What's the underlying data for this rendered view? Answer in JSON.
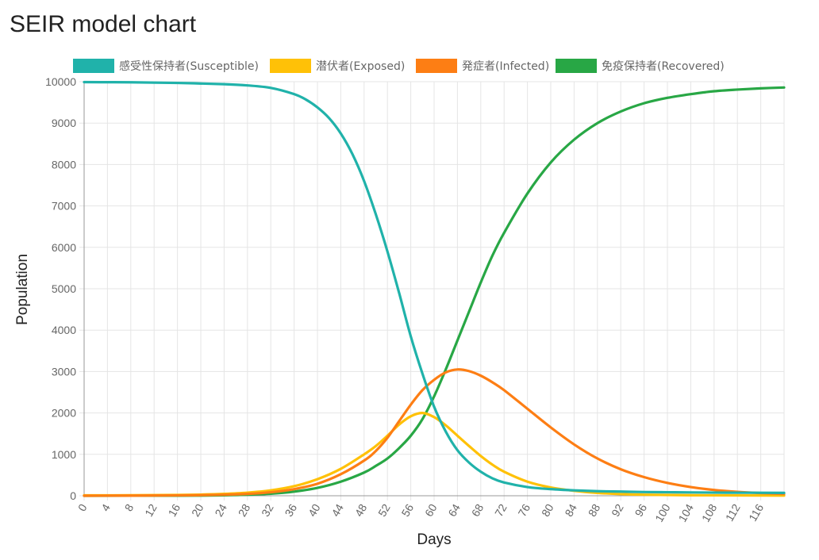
{
  "page": {
    "title": "SEIR model chart"
  },
  "colors": {
    "susceptible": "#20b2aa",
    "exposed": "#ffc107",
    "infected": "#fd7e14",
    "recovered": "#28a745",
    "grid": "#e5e5e5",
    "axis": "#999999"
  },
  "chart_data": {
    "type": "line",
    "xlabel": "Days",
    "ylabel": "Population",
    "xlim": [
      0,
      120
    ],
    "ylim": [
      0,
      10000
    ],
    "x_tick_step": 4,
    "y_tick_step": 1000,
    "grid": true,
    "legend_position": "top",
    "series": [
      {
        "name": "感受性保持者(Susceptible)",
        "color_key": "susceptible",
        "points": [
          [
            0,
            9990
          ],
          [
            8,
            9985
          ],
          [
            16,
            9970
          ],
          [
            24,
            9940
          ],
          [
            28,
            9910
          ],
          [
            32,
            9850
          ],
          [
            36,
            9700
          ],
          [
            38,
            9570
          ],
          [
            40,
            9380
          ],
          [
            42,
            9120
          ],
          [
            44,
            8750
          ],
          [
            46,
            8250
          ],
          [
            48,
            7600
          ],
          [
            50,
            6800
          ],
          [
            52,
            5900
          ],
          [
            54,
            4900
          ],
          [
            56,
            3850
          ],
          [
            58,
            2950
          ],
          [
            60,
            2150
          ],
          [
            62,
            1550
          ],
          [
            64,
            1100
          ],
          [
            66,
            800
          ],
          [
            68,
            580
          ],
          [
            70,
            420
          ],
          [
            72,
            320
          ],
          [
            76,
            210
          ],
          [
            80,
            160
          ],
          [
            84,
            130
          ],
          [
            88,
            110
          ],
          [
            92,
            100
          ],
          [
            96,
            90
          ],
          [
            100,
            85
          ],
          [
            104,
            80
          ],
          [
            110,
            75
          ],
          [
            120,
            70
          ]
        ]
      },
      {
        "name": "潜伏者(Exposed)",
        "color_key": "exposed",
        "points": [
          [
            0,
            10
          ],
          [
            8,
            12
          ],
          [
            16,
            20
          ],
          [
            20,
            28
          ],
          [
            24,
            45
          ],
          [
            28,
            75
          ],
          [
            32,
            130
          ],
          [
            36,
            230
          ],
          [
            40,
            400
          ],
          [
            44,
            650
          ],
          [
            48,
            1000
          ],
          [
            50,
            1200
          ],
          [
            52,
            1450
          ],
          [
            54,
            1720
          ],
          [
            56,
            1920
          ],
          [
            58,
            2000
          ],
          [
            60,
            1900
          ],
          [
            62,
            1700
          ],
          [
            64,
            1450
          ],
          [
            66,
            1200
          ],
          [
            68,
            960
          ],
          [
            70,
            750
          ],
          [
            72,
            580
          ],
          [
            76,
            340
          ],
          [
            80,
            200
          ],
          [
            84,
            120
          ],
          [
            88,
            70
          ],
          [
            92,
            40
          ],
          [
            96,
            25
          ],
          [
            104,
            12
          ],
          [
            120,
            5
          ]
        ]
      },
      {
        "name": "発症者(Infected)",
        "color_key": "infected",
        "points": [
          [
            0,
            0
          ],
          [
            8,
            3
          ],
          [
            16,
            8
          ],
          [
            20,
            15
          ],
          [
            24,
            25
          ],
          [
            28,
            45
          ],
          [
            32,
            85
          ],
          [
            36,
            160
          ],
          [
            40,
            290
          ],
          [
            44,
            520
          ],
          [
            48,
            850
          ],
          [
            50,
            1080
          ],
          [
            52,
            1400
          ],
          [
            54,
            1800
          ],
          [
            56,
            2200
          ],
          [
            58,
            2550
          ],
          [
            60,
            2800
          ],
          [
            62,
            2980
          ],
          [
            64,
            3050
          ],
          [
            66,
            3010
          ],
          [
            68,
            2900
          ],
          [
            70,
            2740
          ],
          [
            72,
            2550
          ],
          [
            76,
            2100
          ],
          [
            80,
            1650
          ],
          [
            84,
            1240
          ],
          [
            88,
            900
          ],
          [
            92,
            640
          ],
          [
            96,
            450
          ],
          [
            100,
            310
          ],
          [
            104,
            210
          ],
          [
            108,
            140
          ],
          [
            112,
            95
          ],
          [
            116,
            65
          ],
          [
            120,
            45
          ]
        ]
      },
      {
        "name": "免疫保持者(Recovered)",
        "color_key": "recovered",
        "points": [
          [
            0,
            0
          ],
          [
            16,
            2
          ],
          [
            20,
            5
          ],
          [
            24,
            12
          ],
          [
            28,
            25
          ],
          [
            32,
            50
          ],
          [
            36,
            100
          ],
          [
            40,
            190
          ],
          [
            44,
            340
          ],
          [
            48,
            560
          ],
          [
            50,
            720
          ],
          [
            52,
            900
          ],
          [
            54,
            1150
          ],
          [
            56,
            1450
          ],
          [
            58,
            1850
          ],
          [
            60,
            2400
          ],
          [
            62,
            3050
          ],
          [
            64,
            3750
          ],
          [
            66,
            4450
          ],
          [
            68,
            5150
          ],
          [
            70,
            5800
          ],
          [
            72,
            6350
          ],
          [
            76,
            7300
          ],
          [
            80,
            8050
          ],
          [
            84,
            8600
          ],
          [
            88,
            9000
          ],
          [
            92,
            9280
          ],
          [
            96,
            9480
          ],
          [
            100,
            9610
          ],
          [
            104,
            9700
          ],
          [
            108,
            9770
          ],
          [
            112,
            9810
          ],
          [
            116,
            9840
          ],
          [
            120,
            9860
          ]
        ]
      }
    ]
  }
}
